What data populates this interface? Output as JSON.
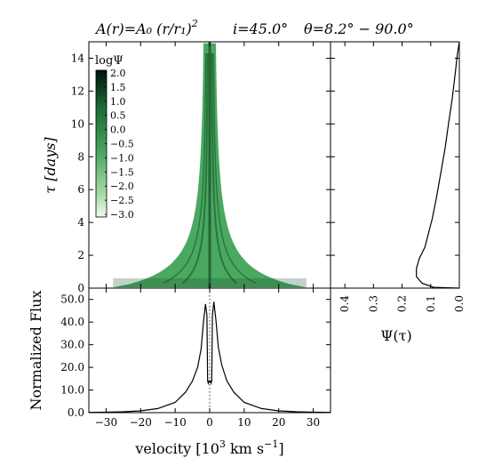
{
  "chart_data": [
    {
      "type": "heatmap",
      "title_parts": {
        "left": "A(r)=A₀ (r/r₁)",
        "left_sup": "2",
        "mid": "i=45.0°",
        "right": "θ=8.2° − 90.0°"
      },
      "ylabel": "τ [days]",
      "xlim": [
        -35,
        35
      ],
      "ylim": [
        0,
        15
      ],
      "y_ticks": [
        "0",
        "2",
        "4",
        "6",
        "8",
        "10",
        "12",
        "14"
      ],
      "colorbar": {
        "label": "logΨ",
        "ticks": [
          "2.0",
          "1.5",
          "1.0",
          "0.5",
          "0.0",
          "−0.5",
          "−1.0",
          "−1.5",
          "−2.0",
          "−2.5",
          "−3.0"
        ],
        "range": [
          -3.0,
          2.0
        ]
      },
      "colors": {
        "fill": "#4aa860",
        "dark": "#0f4a22",
        "light": "#c8ebc8"
      }
    },
    {
      "type": "line",
      "xlabel": "Ψ(τ)",
      "xlim": [
        0.45,
        0.0
      ],
      "ylim": [
        0,
        15
      ],
      "x_ticks": [
        "0.4",
        "0.3",
        "0.2",
        "0.1",
        "0.0"
      ],
      "series": [
        {
          "points": [
            [
              0.0,
              0.0
            ],
            [
              0.09,
              0.05
            ],
            [
              0.13,
              0.3
            ],
            [
              0.15,
              0.7
            ],
            [
              0.15,
              1.2
            ],
            [
              0.14,
              1.8
            ],
            [
              0.12,
              2.5
            ],
            [
              0.11,
              3.2
            ],
            [
              0.095,
              4.2
            ],
            [
              0.08,
              5.5
            ],
            [
              0.065,
              7.0
            ],
            [
              0.05,
              8.5
            ],
            [
              0.038,
              10.0
            ],
            [
              0.025,
              11.5
            ],
            [
              0.015,
              13.0
            ],
            [
              0.007,
              14.2
            ],
            [
              0.0,
              15.0
            ]
          ]
        }
      ]
    },
    {
      "type": "line",
      "ylabel": "Normalized Flux",
      "xlabel_parts": {
        "pre": "velocity [10",
        "sup1": "3",
        "mid": " km s",
        "sup2": "−1",
        "post": "]"
      },
      "xlim": [
        -35,
        35
      ],
      "ylim": [
        0,
        55
      ],
      "x_ticks": [
        "−30",
        "−20",
        "−10",
        "0",
        "10",
        "20",
        "30"
      ],
      "y_ticks": [
        "0.0",
        "10.0",
        "20.0",
        "30.0",
        "40.0",
        "50.0"
      ],
      "series": [
        {
          "points": [
            [
              -35,
              0.1
            ],
            [
              -30,
              0.2
            ],
            [
              -25,
              0.4
            ],
            [
              -20,
              0.8
            ],
            [
              -15,
              1.8
            ],
            [
              -10,
              4.5
            ],
            [
              -7,
              9
            ],
            [
              -5,
              14
            ],
            [
              -3.5,
              20
            ],
            [
              -2.5,
              28
            ],
            [
              -1.8,
              40
            ],
            [
              -1.2,
              48
            ],
            [
              -0.8,
              43
            ],
            [
              -0.6,
              14
            ],
            [
              -0.4,
              13
            ],
            [
              -0.2,
              14
            ],
            [
              0,
              13.5
            ],
            [
              0.2,
              14
            ],
            [
              0.4,
              13
            ],
            [
              0.6,
              14
            ],
            [
              0.8,
              43
            ],
            [
              1.2,
              49
            ],
            [
              1.8,
              41
            ],
            [
              2.5,
              29
            ],
            [
              3.5,
              21
            ],
            [
              5,
              14
            ],
            [
              7,
              9
            ],
            [
              10,
              4.5
            ],
            [
              15,
              1.8
            ],
            [
              20,
              0.8
            ],
            [
              25,
              0.4
            ],
            [
              30,
              0.2
            ],
            [
              35,
              0.1
            ]
          ]
        }
      ]
    }
  ]
}
